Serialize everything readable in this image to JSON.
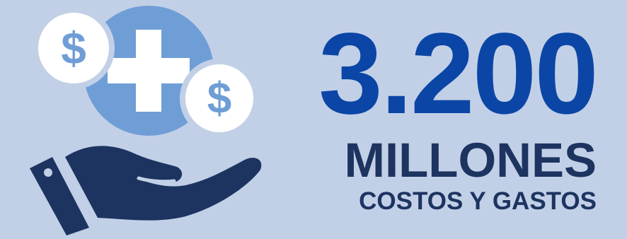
{
  "stat": {
    "amount": "3.200",
    "unit": "MILLONES",
    "caption": "COSTOS Y GASTOS"
  },
  "colors": {
    "background": "#c2d0e7",
    "amount": "#0b46a6",
    "text": "#1d3461",
    "circle": "#6f9ed6",
    "coin": "#ffffff"
  },
  "icons": [
    "dollar-coin-icon",
    "medical-cross-icon",
    "open-hand-icon"
  ]
}
